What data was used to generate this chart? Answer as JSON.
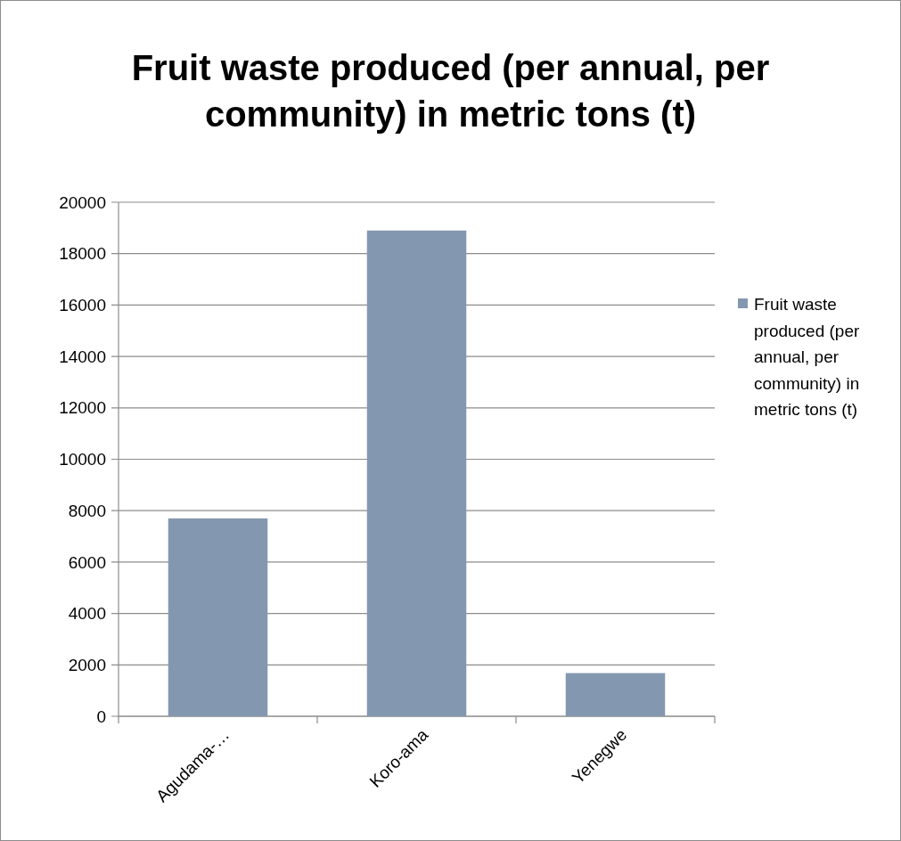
{
  "chart_data": {
    "type": "bar",
    "title": "Fruit waste produced (per annual, per community) in metric tons (t)",
    "categories": [
      "Agudama-…",
      "Koro-ama",
      "Yenegwe"
    ],
    "series": [
      {
        "name": "Fruit waste produced (per annual, per community) in metric tons (t)",
        "color": "#8497b0",
        "values": [
          7700,
          18900,
          1680
        ]
      }
    ],
    "ylim": [
      0,
      20000
    ],
    "yticks": [
      0,
      2000,
      4000,
      6000,
      8000,
      10000,
      12000,
      14000,
      16000,
      18000,
      20000
    ],
    "grid": "y",
    "legend": "right"
  }
}
